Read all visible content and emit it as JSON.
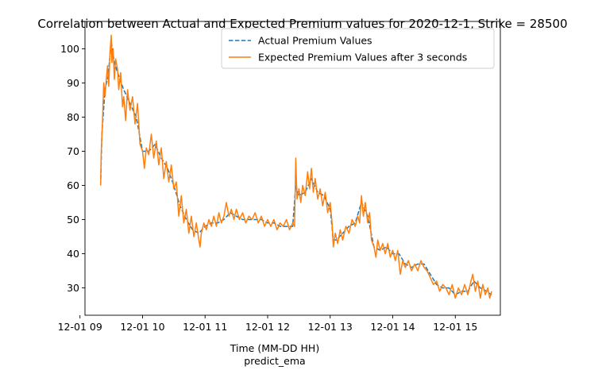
{
  "chart_data": {
    "type": "line",
    "title": "Correlation between Actual and Expected Premium values for 2020-12-1, Strike = 28500",
    "xlabel": "Time (MM-DD HH)",
    "xlabel_sub": "predict_ema",
    "ylabel": "",
    "xlim": [
      9.08,
      15.72
    ],
    "ylim": [
      22,
      108
    ],
    "x_ticks": [
      9,
      10,
      11,
      12,
      13,
      14,
      15
    ],
    "x_tick_labels": [
      "12-01 09",
      "12-01 10",
      "12-01 11",
      "12-01 12",
      "12-01 13",
      "12-01 14",
      "12-01 15"
    ],
    "y_ticks": [
      30,
      40,
      50,
      60,
      70,
      80,
      90,
      100
    ],
    "y_tick_labels": [
      "30",
      "40",
      "50",
      "60",
      "70",
      "80",
      "90",
      "100"
    ],
    "legend_position": "top-right",
    "grid": false,
    "series": [
      {
        "name": "Actual Premium Values",
        "color": "#1f77b4",
        "style": "dashed",
        "points": [
          [
            9.33,
            60
          ],
          [
            9.35,
            75
          ],
          [
            9.4,
            88
          ],
          [
            9.45,
            92
          ],
          [
            9.5,
            102
          ],
          [
            9.55,
            96
          ],
          [
            9.6,
            93
          ],
          [
            9.7,
            88
          ],
          [
            9.8,
            84
          ],
          [
            9.9,
            80
          ],
          [
            10.0,
            70
          ],
          [
            10.1,
            70
          ],
          [
            10.2,
            72
          ],
          [
            10.3,
            68
          ],
          [
            10.4,
            65
          ],
          [
            10.5,
            60
          ],
          [
            10.6,
            54
          ],
          [
            10.7,
            50
          ],
          [
            10.8,
            47
          ],
          [
            10.9,
            46
          ],
          [
            11.0,
            48
          ],
          [
            11.1,
            49
          ],
          [
            11.2,
            49
          ],
          [
            11.3,
            50
          ],
          [
            11.4,
            52
          ],
          [
            11.5,
            51
          ],
          [
            11.6,
            50
          ],
          [
            11.7,
            50
          ],
          [
            11.8,
            50
          ],
          [
            11.9,
            50
          ],
          [
            12.0,
            49
          ],
          [
            12.1,
            49
          ],
          [
            12.2,
            48
          ],
          [
            12.3,
            48
          ],
          [
            12.4,
            48
          ],
          [
            12.45,
            60
          ],
          [
            12.5,
            57
          ],
          [
            12.6,
            58
          ],
          [
            12.7,
            62
          ],
          [
            12.8,
            58
          ],
          [
            12.9,
            57
          ],
          [
            13.0,
            53
          ],
          [
            13.05,
            44
          ],
          [
            13.1,
            44
          ],
          [
            13.2,
            46
          ],
          [
            13.3,
            48
          ],
          [
            13.4,
            49
          ],
          [
            13.5,
            55
          ],
          [
            13.6,
            51
          ],
          [
            13.7,
            42
          ],
          [
            13.8,
            41
          ],
          [
            13.9,
            42
          ],
          [
            14.0,
            40
          ],
          [
            14.1,
            40
          ],
          [
            14.2,
            37
          ],
          [
            14.3,
            36
          ],
          [
            14.4,
            37
          ],
          [
            14.5,
            37
          ],
          [
            14.6,
            34
          ],
          [
            14.7,
            31
          ],
          [
            14.8,
            30
          ],
          [
            14.9,
            30
          ],
          [
            15.0,
            28
          ],
          [
            15.1,
            29
          ],
          [
            15.2,
            29
          ],
          [
            15.3,
            32
          ],
          [
            15.4,
            30
          ],
          [
            15.5,
            29
          ],
          [
            15.58,
            28
          ]
        ]
      },
      {
        "name": "Expected Premium Values after 3 seconds",
        "color": "#ff7f0e",
        "style": "solid",
        "points": [
          [
            9.33,
            60
          ],
          [
            9.34,
            70
          ],
          [
            9.36,
            79
          ],
          [
            9.38,
            90
          ],
          [
            9.4,
            86
          ],
          [
            9.42,
            91
          ],
          [
            9.44,
            95
          ],
          [
            9.46,
            89
          ],
          [
            9.48,
            99
          ],
          [
            9.5,
            104
          ],
          [
            9.51,
            96
          ],
          [
            9.53,
            100
          ],
          [
            9.55,
            91
          ],
          [
            9.57,
            97
          ],
          [
            9.6,
            94
          ],
          [
            9.62,
            88
          ],
          [
            9.65,
            93
          ],
          [
            9.68,
            83
          ],
          [
            9.7,
            86
          ],
          [
            9.73,
            79
          ],
          [
            9.76,
            88
          ],
          [
            9.8,
            82
          ],
          [
            9.84,
            86
          ],
          [
            9.88,
            78
          ],
          [
            9.92,
            84
          ],
          [
            9.96,
            72
          ],
          [
            10.0,
            70
          ],
          [
            10.03,
            65
          ],
          [
            10.06,
            71
          ],
          [
            10.1,
            69
          ],
          [
            10.14,
            75
          ],
          [
            10.18,
            68
          ],
          [
            10.22,
            73
          ],
          [
            10.26,
            66
          ],
          [
            10.3,
            71
          ],
          [
            10.34,
            62
          ],
          [
            10.38,
            67
          ],
          [
            10.42,
            61
          ],
          [
            10.46,
            66
          ],
          [
            10.5,
            59
          ],
          [
            10.54,
            61
          ],
          [
            10.58,
            51
          ],
          [
            10.62,
            57
          ],
          [
            10.66,
            49
          ],
          [
            10.7,
            53
          ],
          [
            10.74,
            46
          ],
          [
            10.78,
            51
          ],
          [
            10.82,
            45
          ],
          [
            10.86,
            49
          ],
          [
            10.9,
            44
          ],
          [
            10.92,
            42
          ],
          [
            10.94,
            46
          ],
          [
            10.98,
            49
          ],
          [
            11.02,
            47
          ],
          [
            11.06,
            50
          ],
          [
            11.1,
            48
          ],
          [
            11.14,
            51
          ],
          [
            11.18,
            48
          ],
          [
            11.22,
            52
          ],
          [
            11.26,
            49
          ],
          [
            11.3,
            51
          ],
          [
            11.34,
            55
          ],
          [
            11.38,
            51
          ],
          [
            11.42,
            53
          ],
          [
            11.46,
            50
          ],
          [
            11.5,
            53
          ],
          [
            11.55,
            50
          ],
          [
            11.6,
            52
          ],
          [
            11.65,
            49
          ],
          [
            11.7,
            51
          ],
          [
            11.75,
            50
          ],
          [
            11.8,
            52
          ],
          [
            11.85,
            49
          ],
          [
            11.9,
            51
          ],
          [
            11.95,
            48
          ],
          [
            12.0,
            50
          ],
          [
            12.05,
            48
          ],
          [
            12.1,
            50
          ],
          [
            12.15,
            47
          ],
          [
            12.2,
            49
          ],
          [
            12.25,
            48
          ],
          [
            12.3,
            50
          ],
          [
            12.35,
            47
          ],
          [
            12.4,
            49
          ],
          [
            12.43,
            48
          ],
          [
            12.45,
            68
          ],
          [
            12.47,
            56
          ],
          [
            12.5,
            59
          ],
          [
            12.53,
            55
          ],
          [
            12.56,
            60
          ],
          [
            12.6,
            57
          ],
          [
            12.64,
            64
          ],
          [
            12.67,
            59
          ],
          [
            12.7,
            65
          ],
          [
            12.73,
            58
          ],
          [
            12.76,
            62
          ],
          [
            12.8,
            56
          ],
          [
            12.84,
            59
          ],
          [
            12.88,
            54
          ],
          [
            12.92,
            58
          ],
          [
            12.96,
            52
          ],
          [
            13.0,
            55
          ],
          [
            13.03,
            49
          ],
          [
            13.05,
            42
          ],
          [
            13.08,
            46
          ],
          [
            13.12,
            43
          ],
          [
            13.16,
            47
          ],
          [
            13.2,
            44
          ],
          [
            13.25,
            48
          ],
          [
            13.3,
            46
          ],
          [
            13.35,
            50
          ],
          [
            13.4,
            48
          ],
          [
            13.44,
            51
          ],
          [
            13.47,
            49
          ],
          [
            13.5,
            57
          ],
          [
            13.53,
            51
          ],
          [
            13.56,
            55
          ],
          [
            13.6,
            49
          ],
          [
            13.63,
            52
          ],
          [
            13.66,
            44
          ],
          [
            13.7,
            42
          ],
          [
            13.73,
            39
          ],
          [
            13.76,
            44
          ],
          [
            13.8,
            41
          ],
          [
            13.84,
            43
          ],
          [
            13.88,
            40
          ],
          [
            13.92,
            43
          ],
          [
            13.96,
            39
          ],
          [
            14.0,
            41
          ],
          [
            14.04,
            38
          ],
          [
            14.08,
            41
          ],
          [
            14.12,
            34
          ],
          [
            14.16,
            38
          ],
          [
            14.2,
            36
          ],
          [
            14.25,
            38
          ],
          [
            14.3,
            35
          ],
          [
            14.35,
            37
          ],
          [
            14.4,
            35
          ],
          [
            14.45,
            38
          ],
          [
            14.5,
            36
          ],
          [
            14.55,
            35
          ],
          [
            14.6,
            33
          ],
          [
            14.65,
            31
          ],
          [
            14.7,
            32
          ],
          [
            14.75,
            29
          ],
          [
            14.8,
            31
          ],
          [
            14.85,
            30
          ],
          [
            14.9,
            28
          ],
          [
            14.95,
            31
          ],
          [
            15.0,
            27
          ],
          [
            15.05,
            30
          ],
          [
            15.1,
            28
          ],
          [
            15.15,
            31
          ],
          [
            15.2,
            28
          ],
          [
            15.25,
            32
          ],
          [
            15.28,
            34
          ],
          [
            15.32,
            29
          ],
          [
            15.36,
            32
          ],
          [
            15.4,
            27
          ],
          [
            15.44,
            31
          ],
          [
            15.48,
            28
          ],
          [
            15.52,
            30
          ],
          [
            15.55,
            27
          ],
          [
            15.58,
            29
          ]
        ]
      }
    ]
  }
}
